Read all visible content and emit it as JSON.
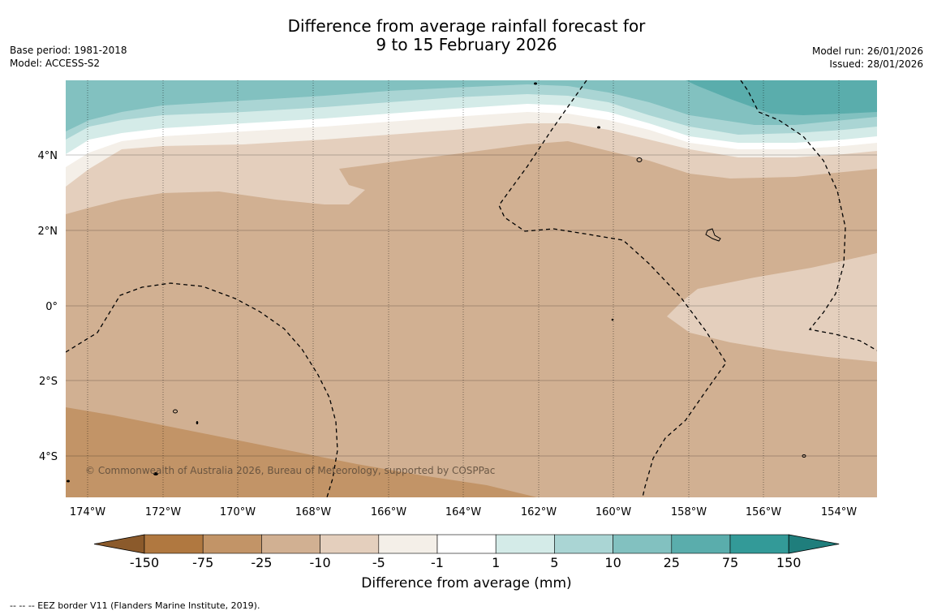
{
  "title": {
    "line1": "Difference from average rainfall forecast for",
    "line2": "9 to 15 February 2026"
  },
  "meta": {
    "base_period": "Base period: 1981-2018",
    "model": "Model: ACCESS-S2",
    "model_run": "Model run: 26/01/2026",
    "issued": "Issued: 28/01/2026"
  },
  "map": {
    "copyright": "© Commonwealth of Australia 2026, Bureau of Meteorology, supported by COSPPac",
    "lon_labels": [
      "174°W",
      "172°W",
      "170°W",
      "168°W",
      "166°W",
      "164°W",
      "162°W",
      "160°W",
      "158°W",
      "156°W",
      "154°W"
    ],
    "lat_labels": [
      "4°N",
      "2°N",
      "0°",
      "2°S",
      "4°S"
    ]
  },
  "colorbar": {
    "ticks": [
      "-150",
      "-75",
      "-25",
      "-10",
      "-5",
      "-1",
      "1",
      "5",
      "10",
      "25",
      "75",
      "150"
    ],
    "colors": [
      "#8b5a2b",
      "#b07840",
      "#c29467",
      "#d1b092",
      "#e4cfbd",
      "#f4efe8",
      "#ffffff",
      "#d4ebe8",
      "#aad5d4",
      "#82c1c0",
      "#5aadac",
      "#339a98",
      "#1f7e7c"
    ],
    "label": "Difference from average (mm)"
  },
  "footnote": "--  --  -- EEZ border V11 (Flanders Marine Institute, 2019)."
}
